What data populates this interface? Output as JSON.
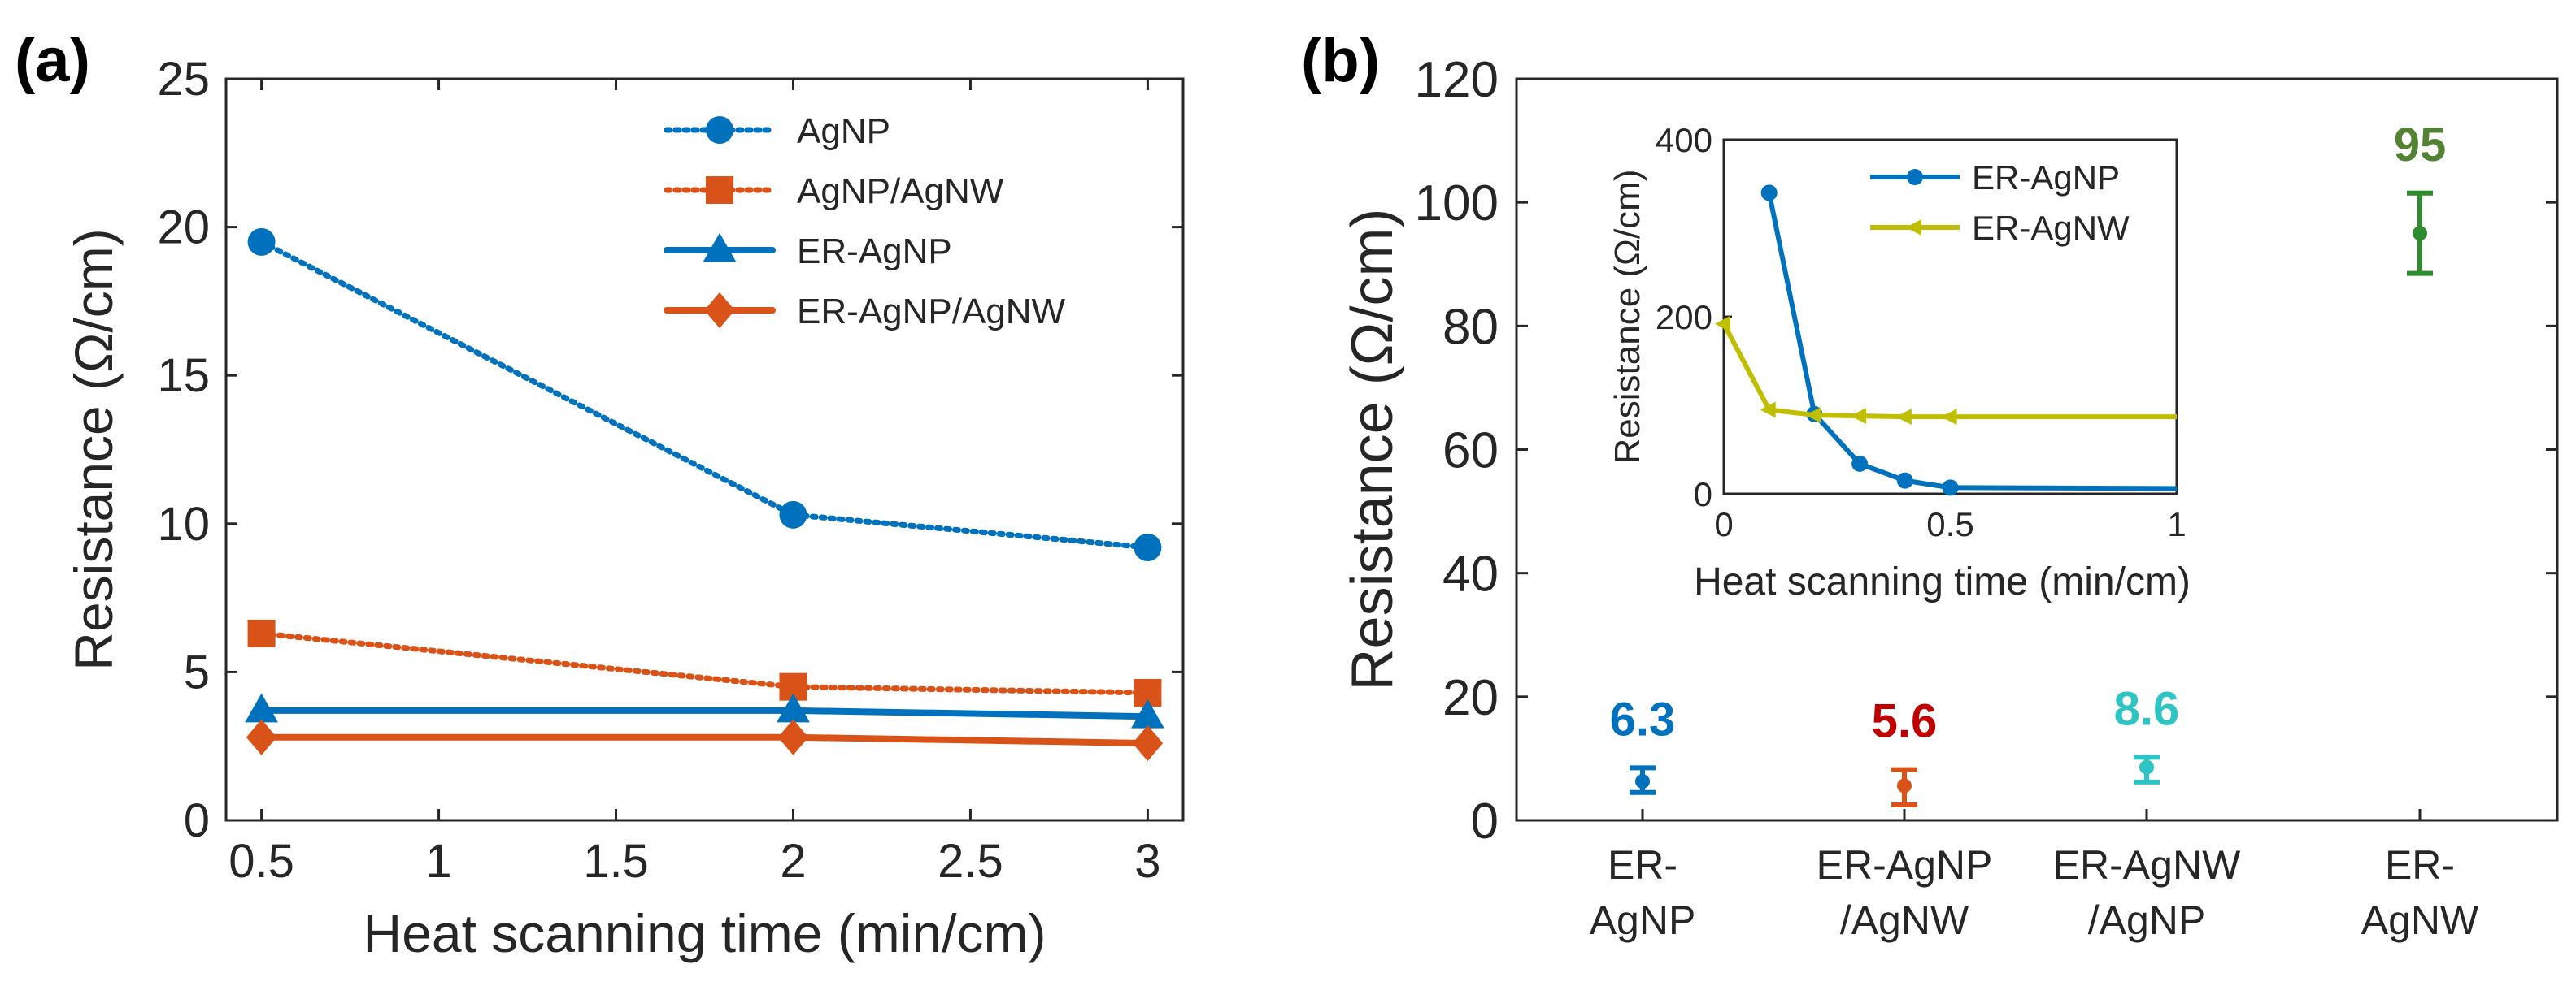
{
  "figure": {
    "panel_a_label": "(a)",
    "panel_b_label": "(b)"
  },
  "chart_data": [
    {
      "type": "line",
      "panel": "(a)",
      "xlabel": "Heat scanning time (min/cm)",
      "ylabel": "Resistance (Ω/cm)",
      "xlim": [
        0.4,
        3.1
      ],
      "ylim": [
        0,
        25
      ],
      "xticks": [
        "0.5",
        "1",
        "1.5",
        "2",
        "2.5",
        "3"
      ],
      "yticks": [
        "0",
        "5",
        "10",
        "15",
        "20",
        "25"
      ],
      "grid": false,
      "legend_position": "top-right",
      "x": [
        0.5,
        2,
        3
      ],
      "series": [
        {
          "name": "AgNP",
          "values": [
            19.5,
            10.3,
            9.2
          ],
          "color": "#0072bd",
          "dash": "dotted",
          "marker": "circle"
        },
        {
          "name": "AgNP/AgNW",
          "values": [
            6.3,
            4.5,
            4.3
          ],
          "color": "#d95319",
          "dash": "dotted",
          "marker": "square"
        },
        {
          "name": "ER-AgNP",
          "values": [
            3.7,
            3.7,
            3.5
          ],
          "color": "#0072bd",
          "dash": "solid",
          "marker": "triangle"
        },
        {
          "name": "ER-AgNP/AgNW",
          "values": [
            2.8,
            2.8,
            2.6
          ],
          "color": "#d95319",
          "dash": "solid",
          "marker": "diamond"
        }
      ]
    },
    {
      "type": "scatter",
      "panel": "(b)",
      "ylabel": "Resistance (Ω/cm)",
      "ylim": [
        0,
        120
      ],
      "yticks": [
        "0",
        "20",
        "40",
        "60",
        "80",
        "100",
        "120"
      ],
      "grid": false,
      "categories": [
        {
          "line1": "ER-",
          "line2": "AgNP"
        },
        {
          "line1": "ER-AgNP",
          "line2": "/AgNW"
        },
        {
          "line1": "ER-AgNW",
          "line2": "/AgNP"
        },
        {
          "line1": "ER-",
          "line2": "AgNW"
        }
      ],
      "points": [
        {
          "value": 6.3,
          "label": "6.3",
          "err_low": 4.5,
          "err_high": 8.5,
          "color": "#0072bd",
          "label_color": "#0072bd"
        },
        {
          "value": 5.6,
          "label": "5.6",
          "err_low": 2.5,
          "err_high": 8.2,
          "color": "#d95319",
          "label_color": "#c00000"
        },
        {
          "value": 8.6,
          "label": "8.6",
          "err_low": 6.2,
          "err_high": 10.2,
          "color": "#2ec4c4",
          "label_color": "#2ec4c4"
        },
        {
          "value": 95,
          "label": "95",
          "err_low": 88.5,
          "err_high": 101.5,
          "color": "#2e8b2e",
          "label_color": "#548235"
        }
      ]
    },
    {
      "type": "line",
      "panel": "(b) inset",
      "xlabel": "Heat scanning time (min/cm)",
      "ylabel": "Resistance (Ω/cm)",
      "xlim": [
        0,
        1
      ],
      "ylim": [
        0,
        400
      ],
      "xticks": [
        "0",
        "0.5",
        "1"
      ],
      "yticks": [
        "0",
        "200",
        "400"
      ],
      "grid": false,
      "legend_position": "top-right",
      "series": [
        {
          "name": "ER-AgNP",
          "x": [
            0.1,
            0.2,
            0.3,
            0.4,
            0.5,
            1.0
          ],
          "values": [
            340,
            90,
            34,
            15,
            7,
            6
          ],
          "color": "#0072bd",
          "marker": "circle"
        },
        {
          "name": "ER-AgNW",
          "x": [
            0,
            0.1,
            0.2,
            0.3,
            0.4,
            0.5,
            1.0
          ],
          "values": [
            192,
            95,
            89,
            88,
            87,
            87,
            87
          ],
          "color": "#bfbf00",
          "marker": "triangle-left"
        }
      ]
    }
  ]
}
